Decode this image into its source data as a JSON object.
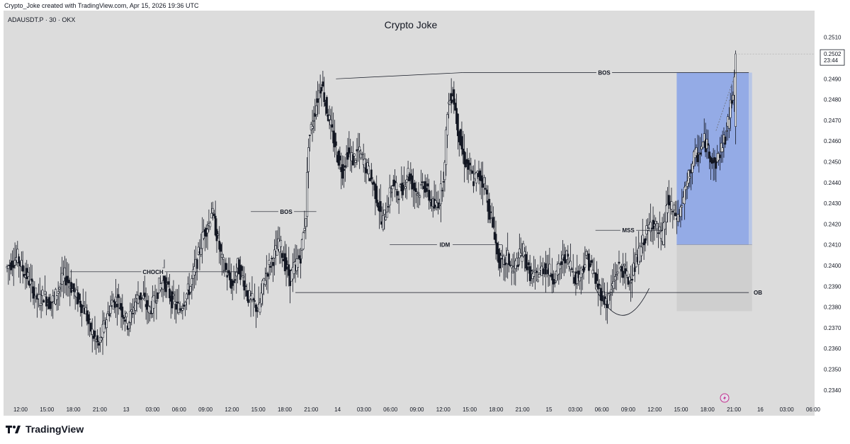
{
  "header": {
    "caption": "Crypto_Joke created with TradingView.com, Apr 15, 2026 19:36 UTC",
    "symbol": "ADAUSDT.P · 30 · OKX",
    "title": "Crypto Joke"
  },
  "footer": {
    "brand": "TradingView",
    "logo_icon": "tradingview-logo-icon"
  },
  "chart_data": {
    "type": "candlestick",
    "title": "Crypto Joke",
    "symbol": "ADAUSDT.P",
    "interval": "30",
    "exchange": "OKX",
    "ylim": [
      0.2332,
      0.2519
    ],
    "y_ticks": [
      "0.2340",
      "0.2350",
      "0.2360",
      "0.2370",
      "0.2380",
      "0.2390",
      "0.2400",
      "0.2410",
      "0.2420",
      "0.2430",
      "0.2440",
      "0.2450",
      "0.2460",
      "0.2470",
      "0.2480",
      "0.2490",
      "0.2500",
      "0.2510"
    ],
    "x_ticks": [
      "12:00",
      "15:00",
      "18:00",
      "21:00",
      "13",
      "03:00",
      "06:00",
      "09:00",
      "12:00",
      "15:00",
      "18:00",
      "21:00",
      "14",
      "03:00",
      "06:00",
      "09:00",
      "12:00",
      "15:00",
      "18:00",
      "21:00",
      "15",
      "03:00",
      "06:00",
      "09:00",
      "12:00",
      "15:00",
      "18:00",
      "21:00",
      "16",
      "03:00",
      "06:00"
    ],
    "last_price": "0.2502",
    "countdown": "23:44",
    "candle_path": [
      [
        0,
        0.2399
      ],
      [
        4,
        0.2402
      ],
      [
        8,
        0.2404
      ],
      [
        12,
        0.2398
      ],
      [
        16,
        0.2394
      ],
      [
        20,
        0.2388
      ],
      [
        24,
        0.2383
      ],
      [
        28,
        0.2386
      ],
      [
        32,
        0.2382
      ],
      [
        36,
        0.2384
      ],
      [
        40,
        0.239
      ],
      [
        44,
        0.2395
      ],
      [
        48,
        0.2391
      ],
      [
        52,
        0.2386
      ],
      [
        56,
        0.2382
      ],
      [
        60,
        0.2378
      ],
      [
        62,
        0.2372
      ],
      [
        66,
        0.2366
      ],
      [
        70,
        0.2361
      ],
      [
        72,
        0.2366
      ],
      [
        76,
        0.2375
      ],
      [
        80,
        0.2382
      ],
      [
        84,
        0.2384
      ],
      [
        88,
        0.2378
      ],
      [
        92,
        0.2372
      ],
      [
        96,
        0.2379
      ],
      [
        100,
        0.2386
      ],
      [
        104,
        0.2384
      ],
      [
        108,
        0.2378
      ],
      [
        112,
        0.2382
      ],
      [
        116,
        0.239
      ],
      [
        120,
        0.2393
      ],
      [
        124,
        0.2386
      ],
      [
        128,
        0.2381
      ],
      [
        132,
        0.2379
      ],
      [
        136,
        0.2385
      ],
      [
        140,
        0.239
      ],
      [
        142,
        0.2395
      ],
      [
        146,
        0.2405
      ],
      [
        150,
        0.2416
      ],
      [
        154,
        0.242
      ],
      [
        156,
        0.2427
      ],
      [
        160,
        0.2415
      ],
      [
        164,
        0.2402
      ],
      [
        168,
        0.2396
      ],
      [
        172,
        0.239
      ],
      [
        176,
        0.24
      ],
      [
        180,
        0.2394
      ],
      [
        184,
        0.2385
      ],
      [
        188,
        0.2382
      ],
      [
        192,
        0.2378
      ],
      [
        196,
        0.2393
      ],
      [
        200,
        0.24
      ],
      [
        204,
        0.2405
      ],
      [
        208,
        0.2411
      ],
      [
        212,
        0.2401
      ],
      [
        216,
        0.2394
      ],
      [
        220,
        0.24
      ],
      [
        224,
        0.2405
      ],
      [
        228,
        0.2425
      ],
      [
        230,
        0.246
      ],
      [
        234,
        0.2472
      ],
      [
        238,
        0.2484
      ],
      [
        240,
        0.2488
      ],
      [
        244,
        0.2475
      ],
      [
        248,
        0.2464
      ],
      [
        252,
        0.2453
      ],
      [
        256,
        0.2446
      ],
      [
        260,
        0.2455
      ],
      [
        264,
        0.2451
      ],
      [
        268,
        0.2455
      ],
      [
        272,
        0.245
      ],
      [
        276,
        0.2445
      ],
      [
        280,
        0.2438
      ],
      [
        284,
        0.2428
      ],
      [
        286,
        0.242
      ],
      [
        290,
        0.2428
      ],
      [
        294,
        0.244
      ],
      [
        298,
        0.2435
      ],
      [
        302,
        0.2438
      ],
      [
        306,
        0.2445
      ],
      [
        310,
        0.2438
      ],
      [
        314,
        0.2435
      ],
      [
        318,
        0.244
      ],
      [
        322,
        0.2433
      ],
      [
        326,
        0.2428
      ],
      [
        330,
        0.2432
      ],
      [
        334,
        0.2448
      ],
      [
        336,
        0.2476
      ],
      [
        340,
        0.2484
      ],
      [
        344,
        0.2466
      ],
      [
        348,
        0.2453
      ],
      [
        352,
        0.2447
      ],
      [
        356,
        0.2441
      ],
      [
        360,
        0.2444
      ],
      [
        364,
        0.244
      ],
      [
        368,
        0.2426
      ],
      [
        372,
        0.2416
      ],
      [
        374,
        0.2405
      ],
      [
        378,
        0.24
      ],
      [
        382,
        0.2404
      ],
      [
        386,
        0.2397
      ],
      [
        390,
        0.2403
      ],
      [
        394,
        0.2407
      ],
      [
        398,
        0.2397
      ],
      [
        402,
        0.2394
      ],
      [
        406,
        0.2396
      ],
      [
        410,
        0.24
      ],
      [
        414,
        0.2397
      ],
      [
        418,
        0.2394
      ],
      [
        422,
        0.24
      ],
      [
        426,
        0.2405
      ],
      [
        430,
        0.24
      ],
      [
        434,
        0.2394
      ],
      [
        438,
        0.2397
      ],
      [
        442,
        0.2404
      ],
      [
        446,
        0.2399
      ],
      [
        450,
        0.2391
      ],
      [
        454,
        0.2386
      ],
      [
        458,
        0.2382
      ],
      [
        462,
        0.239
      ],
      [
        466,
        0.2399
      ],
      [
        470,
        0.2398
      ],
      [
        474,
        0.2393
      ],
      [
        478,
        0.2398
      ],
      [
        482,
        0.2405
      ],
      [
        486,
        0.2413
      ],
      [
        490,
        0.2418
      ],
      [
        492,
        0.2422
      ],
      [
        496,
        0.2417
      ],
      [
        500,
        0.2413
      ],
      [
        504,
        0.2431
      ],
      [
        508,
        0.2426
      ],
      [
        512,
        0.2423
      ],
      [
        516,
        0.2432
      ],
      [
        520,
        0.2442
      ],
      [
        524,
        0.2452
      ],
      [
        528,
        0.2454
      ],
      [
        532,
        0.246
      ],
      [
        536,
        0.2455
      ],
      [
        540,
        0.2448
      ],
      [
        544,
        0.2455
      ],
      [
        548,
        0.2462
      ],
      [
        550,
        0.2468
      ],
      [
        554,
        0.2485
      ],
      [
        556,
        0.2502
      ]
    ],
    "annotations": [
      {
        "label": "CHOCH",
        "price": 0.2397
      },
      {
        "label": "BOS",
        "price": 0.2426
      },
      {
        "label": "IDM",
        "price": 0.241
      },
      {
        "label": "BOS",
        "price": 0.2493
      },
      {
        "label": "MSS",
        "price": 0.2417
      },
      {
        "label": "OB",
        "price": 0.2387
      }
    ],
    "position": {
      "entry": 0.241,
      "target": 0.2493,
      "stop": 0.2378
    }
  }
}
